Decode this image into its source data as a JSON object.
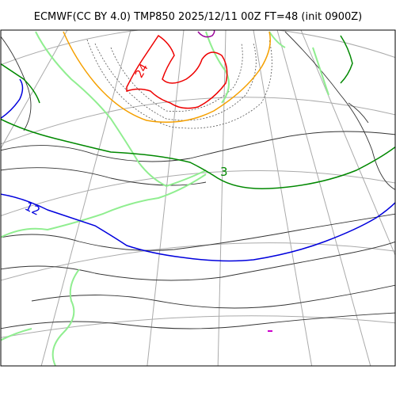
{
  "title": "ECMWF(CC BY 4.0) TMP850 2025/12/11 00Z FT=48 (init 0900Z)",
  "contour_labels": {
    "warm": "24",
    "mid": "3",
    "cold": "12"
  },
  "colors": {
    "warm_contour": "#ee0000",
    "orange_contour": "#f5a000",
    "green_contour": "#008800",
    "light_green_contour": "#90ee90",
    "blue_contour": "#0000dd",
    "purple_contour": "#990099",
    "magenta_contour": "#cc00cc",
    "coast": "#333333",
    "grid": "#aaaaaa",
    "frame": "#000000"
  }
}
